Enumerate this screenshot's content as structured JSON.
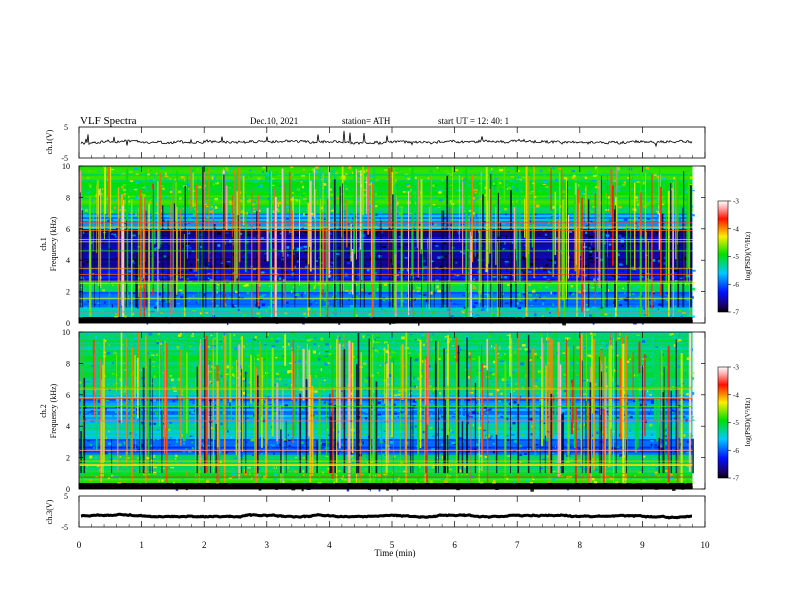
{
  "header": {
    "title": "VLF  Spectra",
    "date": "Dec.10, 2021",
    "station": "station= ATH",
    "start": "start  UT  =    12: 40: 1"
  },
  "colorbar_label": "log(PSD)(V²/Hz)",
  "colors": {
    "spectrogram_base": "#0a2aa8",
    "waveform": "#000000"
  },
  "chart_data": [
    {
      "type": "line",
      "name": "ch.1 waveform",
      "ylabel": "ch.1(V)",
      "ylim": [
        -5,
        5
      ],
      "yticks": [
        "5",
        "-5"
      ],
      "xlim": [
        0,
        10
      ],
      "baseline_v": 0.0,
      "noise_amplitude_v": 0.8,
      "data_end_min": 9.8
    },
    {
      "type": "heatmap",
      "name": "ch.1 spectrogram",
      "ylabel": "ch.1\nFrequency  (kHz)",
      "ylim": [
        0,
        10
      ],
      "yticks": [
        "0",
        "2",
        "4",
        "6",
        "8",
        "10"
      ],
      "xlim": [
        0,
        10
      ],
      "data_end_min": 9.8,
      "zlim": [
        -7,
        -3
      ],
      "zticks": [
        "-3",
        "-4",
        "-5",
        "-6",
        "-7"
      ],
      "bands_khz": [
        {
          "from": 0.0,
          "to": 0.4,
          "level": -7.0
        },
        {
          "from": 0.4,
          "to": 1.0,
          "level": -5.3
        },
        {
          "from": 1.0,
          "to": 2.0,
          "level": -5.9
        },
        {
          "from": 2.0,
          "to": 2.6,
          "level": -5.0
        },
        {
          "from": 2.6,
          "to": 3.6,
          "level": -6.2
        },
        {
          "from": 3.6,
          "to": 6.0,
          "level": -6.6
        },
        {
          "from": 6.0,
          "to": 7.0,
          "level": -5.7
        },
        {
          "from": 7.0,
          "to": 10.0,
          "level": -5.0
        }
      ]
    },
    {
      "type": "heatmap",
      "name": "ch.2 spectrogram",
      "ylabel": "ch.2\nFrequency  (kHz)",
      "ylim": [
        0,
        10
      ],
      "yticks": [
        "0",
        "2",
        "4",
        "6",
        "8",
        "10"
      ],
      "xlim": [
        0,
        10
      ],
      "data_end_min": 9.8,
      "zlim": [
        -7,
        -3
      ],
      "zticks": [
        "-3",
        "-4",
        "-5",
        "-6",
        "-7"
      ],
      "bands_khz": [
        {
          "from": 0.0,
          "to": 0.4,
          "level": -7.0
        },
        {
          "from": 0.4,
          "to": 1.2,
          "level": -4.9
        },
        {
          "from": 1.2,
          "to": 2.2,
          "level": -5.1
        },
        {
          "from": 2.2,
          "to": 3.2,
          "level": -6.0
        },
        {
          "from": 3.2,
          "to": 4.2,
          "level": -5.4
        },
        {
          "from": 4.2,
          "to": 6.0,
          "level": -5.8
        },
        {
          "from": 6.0,
          "to": 10.0,
          "level": -5.2
        }
      ]
    },
    {
      "type": "line",
      "name": "ch.3 waveform",
      "ylabel": "ch.3(V)",
      "ylim": [
        -5,
        5
      ],
      "yticks": [
        "5",
        "-5"
      ],
      "xlim": [
        0,
        10
      ],
      "baseline_v": -1.5,
      "noise_amplitude_v": 0.15,
      "data_end_min": 9.8
    }
  ],
  "x_axis": {
    "label": "Time  (min)",
    "ticks": [
      "0",
      "1",
      "2",
      "3",
      "4",
      "5",
      "6",
      "7",
      "8",
      "9",
      "10"
    ]
  }
}
